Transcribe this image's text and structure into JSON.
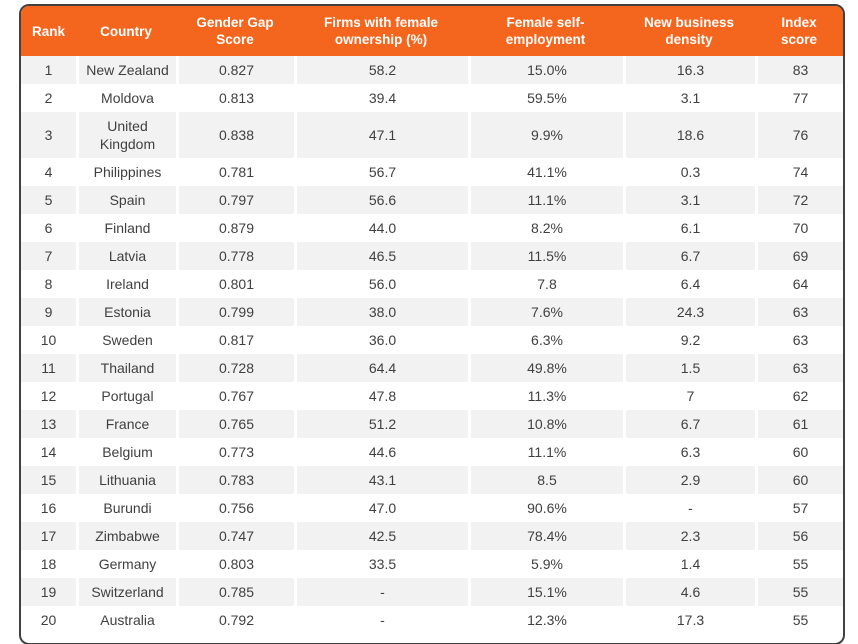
{
  "chart_data": {
    "type": "table",
    "columns": [
      {
        "key": "rank",
        "label": "Rank"
      },
      {
        "key": "country",
        "label": "Country"
      },
      {
        "key": "gender-gap-score",
        "label": "Gender Gap Score"
      },
      {
        "key": "firms-with-female-ownership",
        "label": "Firms with female ownership (%)"
      },
      {
        "key": "female-self-employment",
        "label": "Female self-employment"
      },
      {
        "key": "new-business-density",
        "label": "New business density"
      },
      {
        "key": "index-score",
        "label": "Index score"
      }
    ],
    "rows": [
      [
        "1",
        "New Zealand",
        "0.827",
        "58.2",
        "15.0%",
        "16.3",
        "83"
      ],
      [
        "2",
        "Moldova",
        "0.813",
        "39.4",
        "59.5%",
        "3.1",
        "77"
      ],
      [
        "3",
        "United Kingdom",
        "0.838",
        "47.1",
        "9.9%",
        "18.6",
        "76"
      ],
      [
        "4",
        "Philippines",
        "0.781",
        "56.7",
        "41.1%",
        "0.3",
        "74"
      ],
      [
        "5",
        "Spain",
        "0.797",
        "56.6",
        "11.1%",
        "3.1",
        "72"
      ],
      [
        "6",
        "Finland",
        "0.879",
        "44.0",
        "8.2%",
        "6.1",
        "70"
      ],
      [
        "7",
        "Latvia",
        "0.778",
        "46.5",
        "11.5%",
        "6.7",
        "69"
      ],
      [
        "8",
        "Ireland",
        "0.801",
        "56.0",
        "7.8",
        "6.4",
        "64"
      ],
      [
        "9",
        "Estonia",
        "0.799",
        "38.0",
        "7.6%",
        "24.3",
        "63"
      ],
      [
        "10",
        "Sweden",
        "0.817",
        "36.0",
        "6.3%",
        "9.2",
        "63"
      ],
      [
        "11",
        "Thailand",
        "0.728",
        "64.4",
        "49.8%",
        "1.5",
        "63"
      ],
      [
        "12",
        "Portugal",
        "0.767",
        "47.8",
        "11.3%",
        "7",
        "62"
      ],
      [
        "13",
        "France",
        "0.765",
        "51.2",
        "10.8%",
        "6.7",
        "61"
      ],
      [
        "14",
        "Belgium",
        "0.773",
        "44.6",
        "11.1%",
        "6.3",
        "60"
      ],
      [
        "15",
        "Lithuania",
        "0.783",
        "43.1",
        "8.5",
        "2.9",
        "60"
      ],
      [
        "16",
        "Burundi",
        "0.756",
        "47.0",
        "90.6%",
        "-",
        "57"
      ],
      [
        "17",
        "Zimbabwe",
        "0.747",
        "42.5",
        "78.4%",
        "2.3",
        "56"
      ],
      [
        "18",
        "Germany",
        "0.803",
        "33.5",
        "5.9%",
        "1.4",
        "55"
      ],
      [
        "19",
        "Switzerland",
        "0.785",
        "-",
        "15.1%",
        "4.6",
        "55"
      ],
      [
        "20",
        "Australia",
        "0.792",
        "-",
        "12.3%",
        "17.3",
        "55"
      ]
    ]
  },
  "colors": {
    "header_bg": "#f4661e",
    "header_text": "#ffffff",
    "row_bg": "#ffffff",
    "row_alt_bg": "#f2f2f2",
    "body_text": "#3f3f3f",
    "card_border": "#414141"
  }
}
